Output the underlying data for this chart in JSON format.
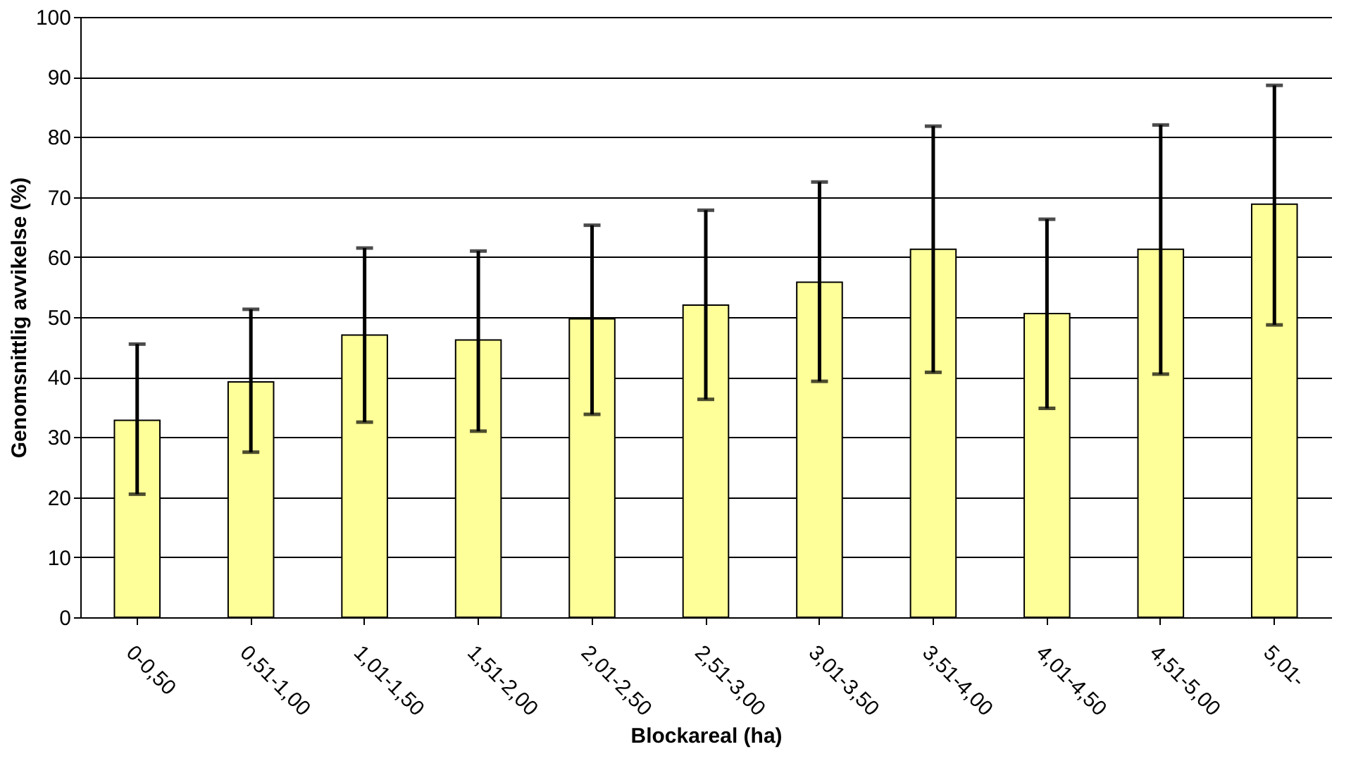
{
  "chart_data": {
    "type": "bar",
    "xlabel": "Blockareal (ha)",
    "ylabel": "Genomsnittlig avvikelse (%)",
    "categories": [
      "0-0,50",
      "0,51-1,00",
      "1,01-1,50",
      "1,51-2,00",
      "2,01-2,50",
      "2,51-3,00",
      "3,01-3,50",
      "3,51-4,00",
      "4,01-4,50",
      "4,51-5,00",
      "5,01-"
    ],
    "values": [
      32.8,
      39.2,
      47,
      46.2,
      49.7,
      52,
      55.8,
      61.3,
      50.6,
      61.3,
      68.8
    ],
    "errors": [
      [
        20.5,
        45.5
      ],
      [
        27.5,
        51.3
      ],
      [
        32.5,
        61.5
      ],
      [
        31,
        61
      ],
      [
        33.8,
        65.3
      ],
      [
        36.3,
        67.8
      ],
      [
        39.3,
        72.5
      ],
      [
        40.8,
        81.8
      ],
      [
        34.8,
        66.3
      ],
      [
        40.5,
        82
      ],
      [
        48.7,
        88.6
      ]
    ],
    "color": "#ffff99",
    "ylim": [
      0,
      100
    ],
    "yticks": [
      0,
      10,
      20,
      30,
      40,
      50,
      60,
      70,
      80,
      90,
      100
    ],
    "grid": "y"
  }
}
